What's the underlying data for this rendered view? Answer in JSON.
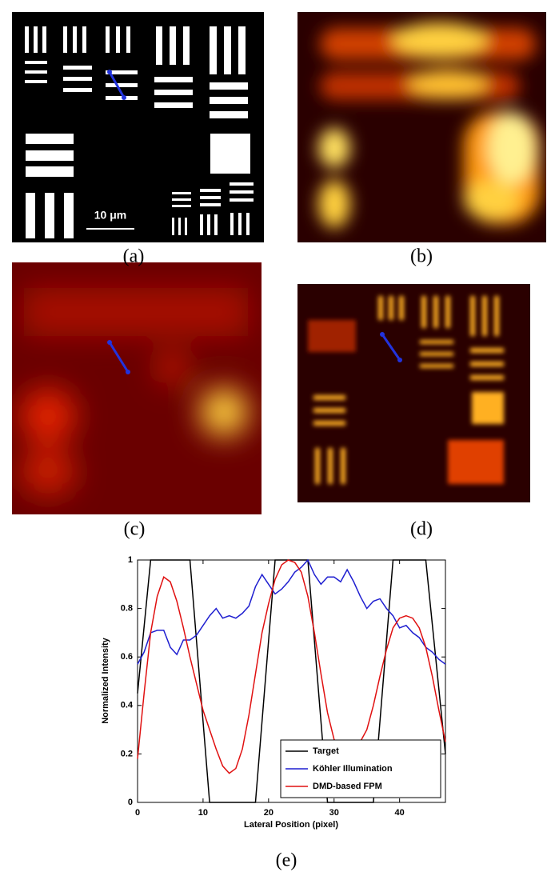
{
  "panels": {
    "a": "(a)",
    "b": "(b)",
    "c": "(c)",
    "d": "(d)",
    "e": "(e)"
  },
  "scale_bar": "10 μm",
  "chart_data": {
    "type": "line",
    "xlabel": "Lateral Position (pixel)",
    "ylabel": "Normalized Intensity",
    "xlim": [
      0,
      47
    ],
    "ylim": [
      0,
      1
    ],
    "xticks": [
      0,
      10,
      20,
      30,
      40
    ],
    "yticks": [
      0,
      0.2,
      0.4,
      0.6,
      0.8,
      1
    ],
    "grid": false,
    "legend": "lower right",
    "series": [
      {
        "name": "Target",
        "color": "#000000",
        "x": [
          0,
          2,
          8,
          11,
          18,
          21,
          26,
          29,
          36,
          39,
          44,
          47
        ],
        "values": [
          0.45,
          1,
          1,
          0,
          0,
          1,
          1,
          0,
          0,
          1,
          1,
          0.2
        ]
      },
      {
        "name": "Köhler Illumination",
        "color": "#1f1fd0",
        "x": [
          0,
          1,
          2,
          3,
          4,
          5,
          6,
          7,
          8,
          9,
          10,
          11,
          12,
          13,
          14,
          15,
          16,
          17,
          18,
          19,
          20,
          21,
          22,
          23,
          24,
          25,
          26,
          27,
          28,
          29,
          30,
          31,
          32,
          33,
          34,
          35,
          36,
          37,
          38,
          39,
          40,
          41,
          42,
          43,
          44,
          45,
          46,
          47
        ],
        "values": [
          0.57,
          0.62,
          0.7,
          0.71,
          0.71,
          0.64,
          0.61,
          0.67,
          0.67,
          0.69,
          0.73,
          0.77,
          0.8,
          0.76,
          0.77,
          0.76,
          0.78,
          0.81,
          0.89,
          0.94,
          0.9,
          0.86,
          0.88,
          0.91,
          0.95,
          0.97,
          1,
          0.94,
          0.9,
          0.93,
          0.93,
          0.91,
          0.96,
          0.91,
          0.85,
          0.8,
          0.83,
          0.84,
          0.8,
          0.77,
          0.72,
          0.73,
          0.7,
          0.68,
          0.64,
          0.62,
          0.59,
          0.57
        ]
      },
      {
        "name": "DMD-based FPM",
        "color": "#e01010",
        "x": [
          0,
          1,
          2,
          3,
          4,
          5,
          6,
          7,
          8,
          9,
          10,
          11,
          12,
          13,
          14,
          15,
          16,
          17,
          18,
          19,
          20,
          21,
          22,
          23,
          24,
          25,
          26,
          27,
          28,
          29,
          30,
          31,
          32,
          33,
          34,
          35,
          36,
          37,
          38,
          39,
          40,
          41,
          42,
          43,
          44,
          45,
          46,
          47
        ],
        "values": [
          0.18,
          0.45,
          0.7,
          0.85,
          0.93,
          0.91,
          0.83,
          0.72,
          0.6,
          0.49,
          0.38,
          0.3,
          0.22,
          0.15,
          0.12,
          0.14,
          0.22,
          0.36,
          0.53,
          0.7,
          0.82,
          0.92,
          0.98,
          1,
          0.99,
          0.95,
          0.85,
          0.7,
          0.53,
          0.37,
          0.26,
          0.22,
          0.22,
          0.23,
          0.25,
          0.3,
          0.4,
          0.52,
          0.63,
          0.72,
          0.76,
          0.77,
          0.76,
          0.72,
          0.64,
          0.52,
          0.38,
          0.25
        ]
      }
    ]
  }
}
